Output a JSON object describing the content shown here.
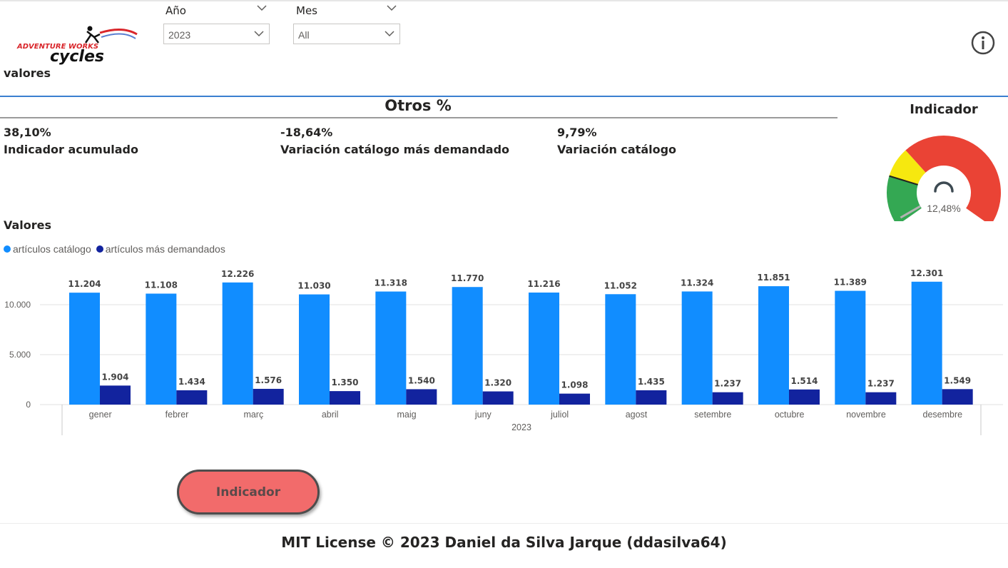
{
  "logo": {
    "line1": "ADVENTURE WORKS",
    "line2": "cycles"
  },
  "filters": {
    "year": {
      "title": "Año",
      "value": "2023"
    },
    "month": {
      "title": "Mes",
      "value": "All"
    }
  },
  "page_label": "valores",
  "otros": {
    "title": "Otros %",
    "kpis": [
      {
        "value": "38,10%",
        "label": "Indicador acumulado"
      },
      {
        "value": "-18,64%",
        "label": "Variación catálogo más demandado"
      },
      {
        "value": "9,79%",
        "label": "Variación catálogo"
      }
    ]
  },
  "gauge": {
    "title": "Indicador",
    "value_label": "12,48%",
    "needle_fraction": 0.02,
    "colors": {
      "green": "#34a853",
      "yellow": "#f6e80f",
      "red": "#ea4335"
    }
  },
  "chart_title": "Valores",
  "legend": [
    {
      "label": "artículos catálogo",
      "color": "#118dff"
    },
    {
      "label": "artículos más demandados",
      "color": "#12239e"
    }
  ],
  "chart_data": {
    "type": "bar",
    "categories": [
      "gener",
      "febrer",
      "març",
      "abril",
      "maig",
      "juny",
      "juliol",
      "agost",
      "setembre",
      "octubre",
      "novembre",
      "desembre"
    ],
    "x_group_label": "2023",
    "series": [
      {
        "name": "artículos catálogo",
        "color": "#118dff",
        "values": [
          11204,
          11108,
          12226,
          11030,
          11318,
          11770,
          11216,
          11052,
          11324,
          11851,
          11389,
          12301
        ],
        "labels": [
          "11.204",
          "11.108",
          "12.226",
          "11.030",
          "11.318",
          "11.770",
          "11.216",
          "11.052",
          "11.324",
          "11.851",
          "11.389",
          "12.301"
        ]
      },
      {
        "name": "artículos más demandados",
        "color": "#12239e",
        "values": [
          1904,
          1434,
          1576,
          1350,
          1540,
          1320,
          1098,
          1435,
          1237,
          1514,
          1237,
          1549
        ],
        "labels": [
          "1.904",
          "1.434",
          "1.576",
          "1.350",
          "1.540",
          "1.320",
          "1.098",
          "1.435",
          "1.237",
          "1.514",
          "1.237",
          "1.549"
        ]
      }
    ],
    "y_ticks": [
      0,
      5000,
      10000
    ],
    "y_tick_labels": [
      "0",
      "5.000",
      "10.000"
    ],
    "ylim": [
      0,
      13000
    ],
    "grid": true
  },
  "button": {
    "label": "Indicador"
  },
  "footer": "MIT License © 2023 Daniel da Silva Jarque (ddasilva64)"
}
